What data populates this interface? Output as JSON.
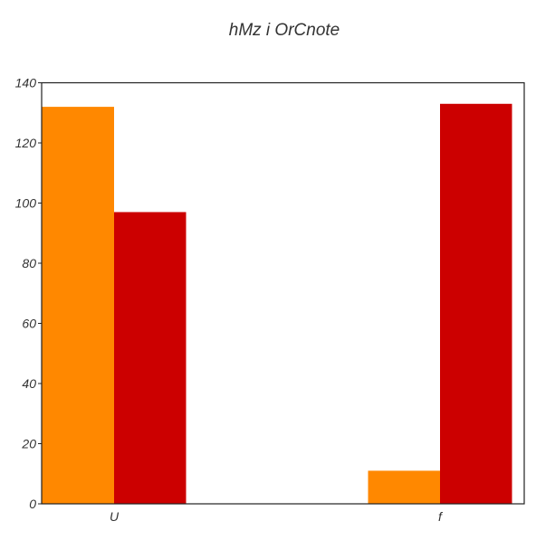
{
  "chart_data": {
    "type": "bar",
    "title": "hMz i OrCnote",
    "xlabel": "",
    "ylabel": "",
    "categories": [
      "U",
      "f"
    ],
    "series": [
      {
        "values": [
          132,
          11
        ],
        "color": "#FF8800"
      },
      {
        "values": [
          97,
          133
        ],
        "color": "#CC0000"
      }
    ],
    "ylim": [
      0,
      140
    ],
    "yticks": [
      0,
      20,
      40,
      60,
      80,
      100,
      120,
      140
    ],
    "grid": false,
    "legend": "none"
  }
}
